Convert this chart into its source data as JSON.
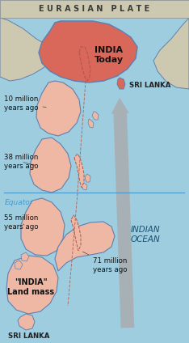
{
  "bg_top_color": "#cdc9b0",
  "bg_ocean_color": "#9ecde0",
  "title_text": "E U R A S I A N   P L A T E",
  "title_color": "#3a3a3a",
  "title_fontsize": 7.0,
  "india_today_color": "#d9685a",
  "india_older_color": "#eeb8a5",
  "india_label": "INDIA\nToday",
  "landmass_label": "\"INDIA\"\nLand mass",
  "equator_color": "#4499cc",
  "arrow_color": "#aaaaaa",
  "outline_color": "#6080b0",
  "dashed_color": "#b05848",
  "label_10m": "10 million\nyears ago",
  "label_38m": "38 million\nyears ago",
  "label_55m": "55 million\nyears ago",
  "label_71m": "71 million\nyears ago",
  "label_equator": "Equator",
  "label_sri_lanka_top": "SRI LANKA",
  "label_sri_lanka_bot": "SRI LANKA",
  "label_indian_ocean": "INDIAN\nOCEAN"
}
